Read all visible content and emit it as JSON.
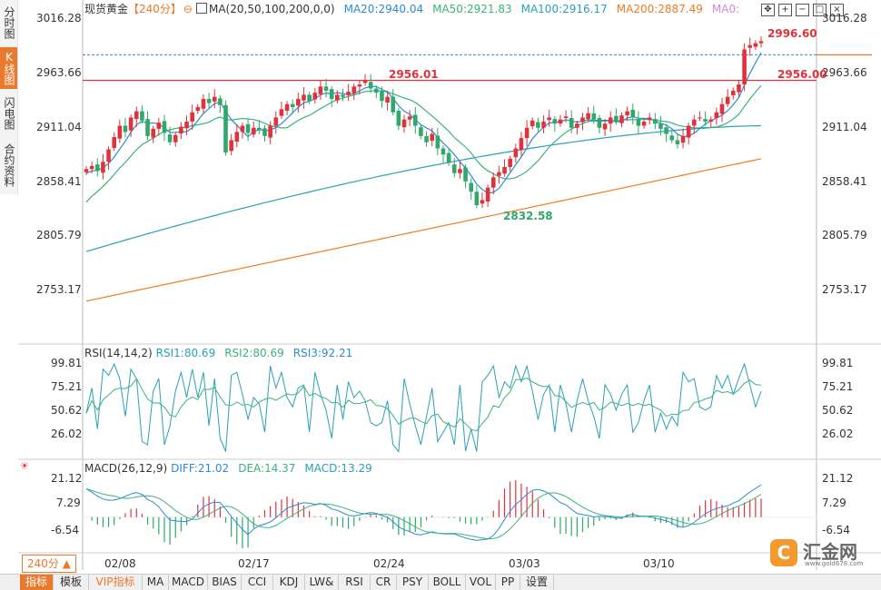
{
  "side_tabs": [
    "分时图",
    "K线图",
    "闪电图",
    "合约资料"
  ],
  "side_active": 1,
  "header": {
    "symbol": "现货黄金",
    "period": "【240分】",
    "ma_label": "MA(20,50,100,200,0,0)",
    "ma20": "MA20:2940.04",
    "ma50": "MA50:2921.83",
    "ma100": "MA100:2916.17",
    "ma200": "MA200:2887.49",
    "ma0": "MA0:"
  },
  "price_axis": [
    "3016.28",
    "2963.66",
    "2911.04",
    "2858.41",
    "2805.79",
    "2753.17"
  ],
  "rsi": {
    "label": "RSI(14,14,2)",
    "rsi1": "RSI1:80.69",
    "rsi2": "RSI2:80.69",
    "rsi3": "RSI3:92.21",
    "axis": [
      "99.81",
      "75.21",
      "50.62",
      "26.02"
    ]
  },
  "macd": {
    "label": "MACD(26,12,9)",
    "diff": "DIFF:21.02",
    "dea": "DEA:14.37",
    "macd": "MACD:13.29",
    "axis": [
      "21.12",
      "7.29",
      "-6.54"
    ]
  },
  "period_button": "240分 ▲",
  "dates": [
    "02/08",
    "02/17",
    "02/24",
    "03/03",
    "03/10"
  ],
  "bottom_tabs": [
    "指标",
    "模板",
    "VIP指标",
    "MA",
    "MACD",
    "BIAS",
    "CCI",
    "KDJ",
    "LW&",
    "RSI",
    "CR",
    "PSY",
    "BOLL",
    "VOL",
    "PP",
    "设置"
  ],
  "logo_text": "汇金网",
  "logo_url": "www.gold678.com",
  "colors": {
    "up": "#e0323a",
    "down": "#2fa86a",
    "ma20": "#2b8ad6",
    "ma50": "#3bb37a",
    "ma100": "#2aa0b8",
    "ma200": "#f07a20",
    "accent": "#e8792d"
  },
  "chart_data": {
    "type": "candlestick",
    "title": "现货黄金 240分",
    "ylim": [
      2730,
      3030
    ],
    "annotations": {
      "high_label": "2996.60",
      "low_label": "2832.58",
      "line1_label": "2956.01",
      "line2_label": "2956.00",
      "line_level": 2956.0
    },
    "closes": [
      2870,
      2873,
      2868,
      2877,
      2889,
      2901,
      2912,
      2906,
      2920,
      2926,
      2917,
      2902,
      2909,
      2915,
      2905,
      2896,
      2903,
      2911,
      2916,
      2925,
      2930,
      2938,
      2934,
      2940,
      2932,
      2886,
      2898,
      2906,
      2912,
      2905,
      2910,
      2908,
      2902,
      2912,
      2920,
      2928,
      2933,
      2930,
      2938,
      2942,
      2936,
      2944,
      2950,
      2946,
      2938,
      2942,
      2940,
      2945,
      2950,
      2952,
      2956,
      2948,
      2944,
      2936,
      2940,
      2925,
      2912,
      2918,
      2921,
      2912,
      2902,
      2896,
      2904,
      2890,
      2884,
      2876,
      2866,
      2870,
      2858,
      2848,
      2835,
      2840,
      2852,
      2862,
      2867,
      2872,
      2880,
      2890,
      2900,
      2910,
      2917,
      2910,
      2916,
      2920,
      2914,
      2918,
      2921,
      2910,
      2914,
      2920,
      2924,
      2918,
      2910,
      2914,
      2920,
      2916,
      2922,
      2926,
      2920,
      2912,
      2916,
      2920,
      2914,
      2909,
      2904,
      2898,
      2894,
      2902,
      2912,
      2918,
      2920,
      2916,
      2918,
      2925,
      2933,
      2940,
      2946,
      2952,
      2986,
      2990,
      2992,
      2994
    ]
  }
}
